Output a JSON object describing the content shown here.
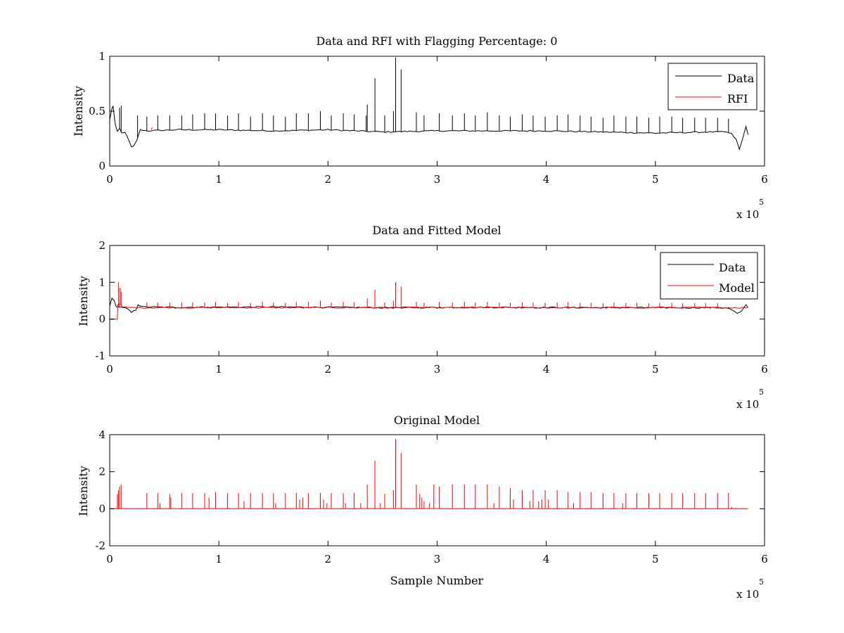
{
  "colors": {
    "data": "#000000",
    "rfi": "#ff0000",
    "axes": "#000000",
    "background": "#ffffff"
  },
  "chart_data": [
    {
      "type": "line",
      "title": "Data and RFI with Flagging Percentage: 0",
      "xlabel": "",
      "ylabel": "Intensity",
      "xlim": [
        0,
        600000
      ],
      "ylim": [
        0,
        1
      ],
      "x_ticks": [
        "0",
        "1",
        "2",
        "3",
        "4",
        "5",
        "6"
      ],
      "y_ticks": [
        "0",
        "0.5",
        "1"
      ],
      "x_exponent": {
        "base": "x 10",
        "power": "5"
      },
      "legend": {
        "placement": "top-right",
        "entries": [
          "Data",
          "RFI"
        ]
      },
      "series": [
        {
          "name": "Data",
          "color": "#000000",
          "baseline": 0.33,
          "x": [
            0,
            2000,
            3000,
            5000,
            7000,
            9000,
            11000,
            14000,
            18000,
            20000,
            22000,
            25000,
            28000,
            35000,
            60000,
            100000,
            150000,
            200000,
            250000,
            300000,
            350000,
            400000,
            450000,
            500000,
            550000,
            565000,
            570000,
            574000,
            577000,
            580000,
            583000,
            585000
          ],
          "y": [
            0.42,
            0.52,
            0.55,
            0.38,
            0.31,
            0.34,
            0.3,
            0.31,
            0.22,
            0.17,
            0.18,
            0.24,
            0.33,
            0.32,
            0.33,
            0.33,
            0.32,
            0.33,
            0.31,
            0.32,
            0.32,
            0.32,
            0.31,
            0.3,
            0.31,
            0.31,
            0.29,
            0.24,
            0.15,
            0.25,
            0.36,
            0.29
          ],
          "spikes": [
            [
              2300,
              0.53
            ],
            [
              9000,
              0.53
            ],
            [
              10500,
              0.55
            ],
            [
              25500,
              0.46
            ],
            [
              34000,
              0.45
            ],
            [
              44000,
              0.46
            ],
            [
              55000,
              0.46
            ],
            [
              66000,
              0.46
            ],
            [
              76000,
              0.47
            ],
            [
              87000,
              0.48
            ],
            [
              97000,
              0.48
            ],
            [
              108000,
              0.46
            ],
            [
              118000,
              0.48
            ],
            [
              129000,
              0.45
            ],
            [
              140000,
              0.48
            ],
            [
              150000,
              0.46
            ],
            [
              161000,
              0.45
            ],
            [
              171000,
              0.48
            ],
            [
              182000,
              0.48
            ],
            [
              193000,
              0.5
            ],
            [
              203000,
              0.46
            ],
            [
              214000,
              0.48
            ],
            [
              224000,
              0.47
            ],
            [
              235000,
              0.46
            ],
            [
              236000,
              0.56
            ],
            [
              243000,
              0.8
            ],
            [
              252000,
              0.46
            ],
            [
              260000,
              0.5
            ],
            [
              262000,
              0.99
            ],
            [
              267000,
              0.88
            ],
            [
              281000,
              0.49
            ],
            [
              288000,
              0.46
            ],
            [
              302000,
              0.48
            ],
            [
              314000,
              0.46
            ],
            [
              325000,
              0.48
            ],
            [
              335000,
              0.46
            ],
            [
              346000,
              0.49
            ],
            [
              357000,
              0.46
            ],
            [
              367000,
              0.45
            ],
            [
              378000,
              0.47
            ],
            [
              388000,
              0.46
            ],
            [
              399000,
              0.45
            ],
            [
              410000,
              0.46
            ],
            [
              420000,
              0.47
            ],
            [
              431000,
              0.46
            ],
            [
              441000,
              0.45
            ],
            [
              452000,
              0.44
            ],
            [
              462000,
              0.46
            ],
            [
              473000,
              0.45
            ],
            [
              483000,
              0.45
            ],
            [
              494000,
              0.44
            ],
            [
              504000,
              0.45
            ],
            [
              515000,
              0.45
            ],
            [
              525000,
              0.44
            ],
            [
              536000,
              0.44
            ],
            [
              546000,
              0.44
            ],
            [
              557000,
              0.44
            ],
            [
              567000,
              0.43
            ]
          ]
        },
        {
          "name": "RFI",
          "color": "#ff0000",
          "x": [
            38000,
            39000
          ],
          "y": [
            0.33,
            0.35
          ]
        }
      ]
    },
    {
      "type": "line",
      "title": "Data and Fitted Model",
      "xlabel": "",
      "ylabel": "Intensity",
      "xlim": [
        0,
        600000
      ],
      "ylim": [
        -1,
        2
      ],
      "x_ticks": [
        "0",
        "1",
        "2",
        "3",
        "4",
        "5",
        "6"
      ],
      "y_ticks": [
        "-1",
        "0",
        "1",
        "2"
      ],
      "x_exponent": {
        "base": "x 10",
        "power": "5"
      },
      "legend": {
        "placement": "top-right",
        "entries": [
          "Data",
          "Model"
        ]
      },
      "series": [
        {
          "name": "Data",
          "color": "#000000",
          "x": [
            0,
            2000,
            4000,
            6000,
            9000,
            12000,
            16000,
            20000,
            24000,
            26000,
            30000,
            60000,
            150000,
            250000,
            350000,
            450000,
            550000,
            565000,
            570000,
            575000,
            579000,
            583000,
            585000
          ],
          "y": [
            0.35,
            0.55,
            0.5,
            0.35,
            0.33,
            0.32,
            0.28,
            0.18,
            0.25,
            0.4,
            0.33,
            0.32,
            0.33,
            0.31,
            0.32,
            0.31,
            0.31,
            0.31,
            0.25,
            0.15,
            0.2,
            0.4,
            0.3
          ]
        },
        {
          "name": "Model",
          "color": "#ff0000",
          "x": [
            0,
            7000,
            7500,
            8000,
            9000,
            11000,
            12000,
            20000,
            100000,
            200000,
            300000,
            400000,
            500000,
            585000
          ],
          "y": [
            0.0,
            0.0,
            0.4,
            0.35,
            0.4,
            0.35,
            0.32,
            0.31,
            0.31,
            0.31,
            0.31,
            0.31,
            0.31,
            0.31
          ],
          "spikes": [
            [
              8000,
              1.0
            ],
            [
              9500,
              0.85
            ],
            [
              10500,
              0.75
            ],
            [
              34000,
              0.45
            ],
            [
              44000,
              0.45
            ],
            [
              55000,
              0.45
            ],
            [
              66000,
              0.45
            ],
            [
              76000,
              0.45
            ],
            [
              87000,
              0.45
            ],
            [
              97000,
              0.47
            ],
            [
              108000,
              0.44
            ],
            [
              118000,
              0.47
            ],
            [
              129000,
              0.44
            ],
            [
              140000,
              0.47
            ],
            [
              150000,
              0.44
            ],
            [
              161000,
              0.44
            ],
            [
              171000,
              0.46
            ],
            [
              182000,
              0.47
            ],
            [
              193000,
              0.5
            ],
            [
              203000,
              0.45
            ],
            [
              214000,
              0.47
            ],
            [
              224000,
              0.46
            ],
            [
              236000,
              0.56
            ],
            [
              243000,
              0.8
            ],
            [
              252000,
              0.45
            ],
            [
              260000,
              0.5
            ],
            [
              262000,
              1.0
            ],
            [
              267000,
              0.88
            ],
            [
              281000,
              0.47
            ],
            [
              288000,
              0.44
            ],
            [
              302000,
              0.47
            ],
            [
              314000,
              0.45
            ],
            [
              325000,
              0.47
            ],
            [
              335000,
              0.45
            ],
            [
              346000,
              0.47
            ],
            [
              357000,
              0.45
            ],
            [
              367000,
              0.44
            ],
            [
              378000,
              0.46
            ],
            [
              388000,
              0.45
            ],
            [
              399000,
              0.44
            ],
            [
              410000,
              0.45
            ],
            [
              420000,
              0.46
            ],
            [
              431000,
              0.44
            ],
            [
              441000,
              0.44
            ],
            [
              452000,
              0.43
            ],
            [
              462000,
              0.45
            ],
            [
              473000,
              0.44
            ],
            [
              483000,
              0.44
            ],
            [
              494000,
              0.43
            ],
            [
              504000,
              0.44
            ],
            [
              515000,
              0.44
            ],
            [
              525000,
              0.43
            ],
            [
              536000,
              0.43
            ],
            [
              546000,
              0.43
            ],
            [
              557000,
              0.43
            ]
          ]
        }
      ]
    },
    {
      "type": "line",
      "title": "Original Model",
      "xlabel": "Sample Number",
      "ylabel": "Intensity",
      "xlim": [
        0,
        600000
      ],
      "ylim": [
        -2,
        4
      ],
      "x_ticks": [
        "0",
        "1",
        "2",
        "3",
        "4",
        "5",
        "6"
      ],
      "y_ticks": [
        "-2",
        "0",
        "2",
        "4"
      ],
      "x_exponent": {
        "base": "x 10",
        "power": "5"
      },
      "series": [
        {
          "name": "Model",
          "color": "#ff0000",
          "baseline": 0,
          "x": [
            0,
            585000
          ],
          "y": [
            0,
            0
          ],
          "spikes": [
            [
              7000,
              0.8
            ],
            [
              8000,
              1.0
            ],
            [
              9000,
              1.2
            ],
            [
              10500,
              1.3
            ],
            [
              34000,
              0.85
            ],
            [
              44000,
              0.85
            ],
            [
              46000,
              0.3
            ],
            [
              55000,
              0.8
            ],
            [
              56000,
              0.6
            ],
            [
              66000,
              0.85
            ],
            [
              76000,
              0.85
            ],
            [
              87000,
              0.85
            ],
            [
              91000,
              0.6
            ],
            [
              97000,
              0.9
            ],
            [
              108000,
              0.85
            ],
            [
              118000,
              0.85
            ],
            [
              123000,
              0.4
            ],
            [
              129000,
              0.85
            ],
            [
              140000,
              0.85
            ],
            [
              150000,
              0.85
            ],
            [
              152000,
              0.3
            ],
            [
              161000,
              0.85
            ],
            [
              171000,
              0.85
            ],
            [
              174000,
              0.5
            ],
            [
              177000,
              0.6
            ],
            [
              182000,
              0.85
            ],
            [
              193000,
              0.85
            ],
            [
              196000,
              0.5
            ],
            [
              199000,
              0.3
            ],
            [
              203000,
              0.85
            ],
            [
              214000,
              0.85
            ],
            [
              216000,
              0.3
            ],
            [
              224000,
              0.85
            ],
            [
              230000,
              0.3
            ],
            [
              236000,
              1.3
            ],
            [
              243000,
              2.6
            ],
            [
              248000,
              0.3
            ],
            [
              252000,
              0.8
            ],
            [
              260000,
              1.0
            ],
            [
              262000,
              3.75
            ],
            [
              267000,
              3.0
            ],
            [
              281000,
              1.3
            ],
            [
              284000,
              0.8
            ],
            [
              286000,
              0.6
            ],
            [
              288000,
              0.4
            ],
            [
              293000,
              0.3
            ],
            [
              297000,
              1.3
            ],
            [
              302000,
              1.2
            ],
            [
              314000,
              1.3
            ],
            [
              325000,
              1.3
            ],
            [
              335000,
              1.3
            ],
            [
              346000,
              1.3
            ],
            [
              352000,
              0.3
            ],
            [
              357000,
              1.2
            ],
            [
              367000,
              1.1
            ],
            [
              370000,
              0.5
            ],
            [
              378000,
              1.0
            ],
            [
              385000,
              0.4
            ],
            [
              388000,
              1.0
            ],
            [
              393000,
              0.4
            ],
            [
              396000,
              0.5
            ],
            [
              399000,
              1.0
            ],
            [
              402000,
              0.5
            ],
            [
              410000,
              1.0
            ],
            [
              420000,
              0.9
            ],
            [
              425000,
              0.3
            ],
            [
              431000,
              0.9
            ],
            [
              441000,
              0.9
            ],
            [
              452000,
              0.85
            ],
            [
              462000,
              0.85
            ],
            [
              470000,
              0.3
            ],
            [
              473000,
              0.85
            ],
            [
              483000,
              0.85
            ],
            [
              494000,
              0.85
            ],
            [
              504000,
              0.85
            ],
            [
              515000,
              0.85
            ],
            [
              525000,
              0.85
            ],
            [
              536000,
              0.85
            ],
            [
              546000,
              0.85
            ],
            [
              557000,
              0.85
            ],
            [
              567000,
              0.85
            ],
            [
              570000,
              0.1
            ]
          ]
        }
      ]
    }
  ]
}
